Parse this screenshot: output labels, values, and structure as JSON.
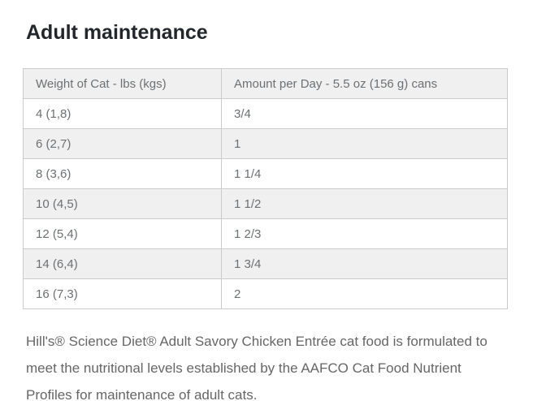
{
  "page": {
    "title": "Adult maintenance"
  },
  "table": {
    "columns": [
      "Weight of Cat - lbs (kgs)",
      "Amount per Day - 5.5 oz (156 g) cans"
    ],
    "rows": [
      {
        "weight": "4 (1,8)",
        "amount": "3/4"
      },
      {
        "weight": "6 (2,7)",
        "amount": "1"
      },
      {
        "weight": "8 (3,6)",
        "amount": "1 1/4"
      },
      {
        "weight": "10 (4,5)",
        "amount": "1 1/2"
      },
      {
        "weight": "12 (5,4)",
        "amount": "1 2/3"
      },
      {
        "weight": "14 (6,4)",
        "amount": "1 3/4"
      },
      {
        "weight": "16 (7,3)",
        "amount": "2"
      }
    ]
  },
  "statement": {
    "text": "Hill's® Science Diet® Adult Savory Chicken Entrée cat food is formulated to meet the nutritional levels established by the AAFCO Cat Food Nutrient Profiles for maintenance of adult cats."
  },
  "colors": {
    "title_text": "#22272c",
    "cell_text": "#6d7072",
    "body_text": "#666666",
    "stripe_background": "#f0f0f1",
    "table_border": "#cbcbcb",
    "page_background": "#ffffff"
  }
}
